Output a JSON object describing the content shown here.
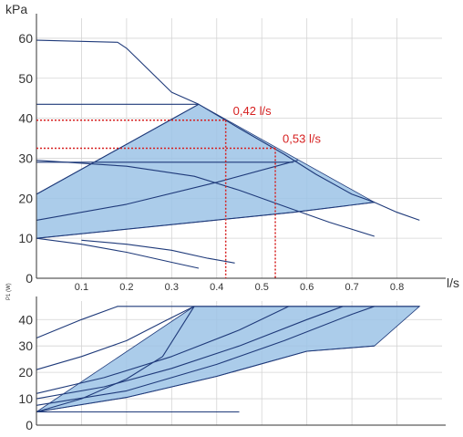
{
  "chart_data": [
    {
      "type": "line",
      "panel": "top",
      "ylabel": "kPa",
      "xlabel": "l/s",
      "xlim": [
        0,
        0.9
      ],
      "ylim": [
        0,
        65
      ],
      "x_ticks": [
        "0.1",
        "0.2",
        "0.3",
        "0.4",
        "0.5",
        "0.6",
        "0.7",
        "0.8"
      ],
      "y_ticks": [
        "0",
        "10",
        "20",
        "30",
        "40",
        "50",
        "60"
      ],
      "grid": true,
      "color": "#1f3a7a",
      "fill_color": "#9cc3e6",
      "operating_region": [
        [
          0,
          10
        ],
        [
          0,
          21
        ],
        [
          0.36,
          43.5
        ],
        [
          0.75,
          19
        ],
        [
          0.57,
          16.5
        ]
      ],
      "series": [
        {
          "points": [
            [
              0,
              59.5
            ],
            [
              0.18,
              59
            ],
            [
              0.2,
              57.5
            ],
            [
              0.25,
              52
            ],
            [
              0.3,
              46.5
            ],
            [
              0.36,
              43.5
            ],
            [
              0.45,
              37.5
            ],
            [
              0.55,
              31
            ],
            [
              0.62,
              26
            ],
            [
              0.7,
              21
            ],
            [
              0.75,
              19
            ],
            [
              0.8,
              16.5
            ],
            [
              0.85,
              14.5
            ]
          ]
        },
        {
          "points": [
            [
              0,
              29.5
            ],
            [
              0.2,
              28
            ],
            [
              0.35,
              25.5
            ],
            [
              0.45,
              22
            ],
            [
              0.55,
              18
            ],
            [
              0.65,
              14
            ],
            [
              0.75,
              10.5
            ]
          ]
        },
        {
          "points": [
            [
              0,
              29
            ],
            [
              0.57,
              29
            ]
          ]
        },
        {
          "points": [
            [
              0,
              43.5
            ],
            [
              0.36,
              43.5
            ]
          ]
        },
        {
          "points": [
            [
              0,
              14.5
            ],
            [
              0.2,
              18.5
            ],
            [
              0.4,
              24
            ],
            [
              0.58,
              29.5
            ]
          ]
        },
        {
          "points": [
            [
              0,
              21
            ],
            [
              0.36,
              43.5
            ]
          ]
        },
        {
          "points": [
            [
              0,
              10
            ],
            [
              0.57,
              16.5
            ],
            [
              0.75,
              19
            ]
          ]
        },
        {
          "points": [
            [
              0,
              10
            ],
            [
              0.1,
              8.5
            ],
            [
              0.2,
              6.5
            ],
            [
              0.3,
              4
            ],
            [
              0.36,
              2.5
            ]
          ]
        },
        {
          "points": [
            [
              0.1,
              9.5
            ],
            [
              0.2,
              8.5
            ],
            [
              0.3,
              7
            ],
            [
              0.38,
              5
            ],
            [
              0.44,
              3.8
            ]
          ]
        }
      ],
      "annotations": [
        {
          "text": "0,42 l/s",
          "x": 0.42,
          "y": 39.5,
          "color": "#d62020"
        },
        {
          "text": "0,53 l/s",
          "x": 0.53,
          "y": 32.5,
          "color": "#d62020"
        }
      ]
    },
    {
      "type": "line",
      "panel": "bottom",
      "ylabel": "P1 (W)",
      "xlim": [
        0,
        0.9
      ],
      "ylim": [
        0,
        47
      ],
      "y_ticks": [
        "0",
        "10",
        "20",
        "30",
        "40"
      ],
      "grid": true,
      "color": "#1f3a7a",
      "fill_color": "#9cc3e6",
      "operating_region": [
        [
          0,
          5
        ],
        [
          0.35,
          45
        ],
        [
          0.85,
          45
        ],
        [
          0.75,
          30
        ],
        [
          0.6,
          28
        ],
        [
          0.4,
          18.5
        ],
        [
          0.2,
          10.5
        ]
      ],
      "series": [
        {
          "points": [
            [
              0,
              33
            ],
            [
              0.1,
              40
            ],
            [
              0.18,
              45
            ],
            [
              0.85,
              45
            ]
          ]
        },
        {
          "points": [
            [
              0,
              21
            ],
            [
              0.1,
              26
            ],
            [
              0.2,
              32
            ],
            [
              0.28,
              39
            ],
            [
              0.35,
              45
            ]
          ]
        },
        {
          "points": [
            [
              0,
              12
            ],
            [
              0.15,
              18
            ],
            [
              0.3,
              26
            ],
            [
              0.45,
              36
            ],
            [
              0.56,
              45
            ]
          ]
        },
        {
          "points": [
            [
              0,
              10
            ],
            [
              0.15,
              14.5
            ],
            [
              0.3,
              21.5
            ],
            [
              0.45,
              30
            ],
            [
              0.6,
              40
            ],
            [
              0.68,
              45
            ]
          ]
        },
        {
          "points": [
            [
              0,
              7.5
            ],
            [
              0.2,
              13
            ],
            [
              0.4,
              23
            ],
            [
              0.55,
              32
            ],
            [
              0.7,
              42
            ],
            [
              0.75,
              45
            ]
          ]
        },
        {
          "points": [
            [
              0,
              5
            ],
            [
              0.1,
              10
            ],
            [
              0.2,
              17.5
            ],
            [
              0.28,
              26
            ],
            [
              0.35,
              45
            ]
          ]
        },
        {
          "points": [
            [
              0,
              5
            ],
            [
              0.2,
              10.5
            ],
            [
              0.4,
              18.5
            ],
            [
              0.6,
              28
            ],
            [
              0.75,
              30
            ]
          ]
        },
        {
          "points": [
            [
              0,
              5
            ],
            [
              0.45,
              5
            ]
          ]
        }
      ]
    }
  ]
}
